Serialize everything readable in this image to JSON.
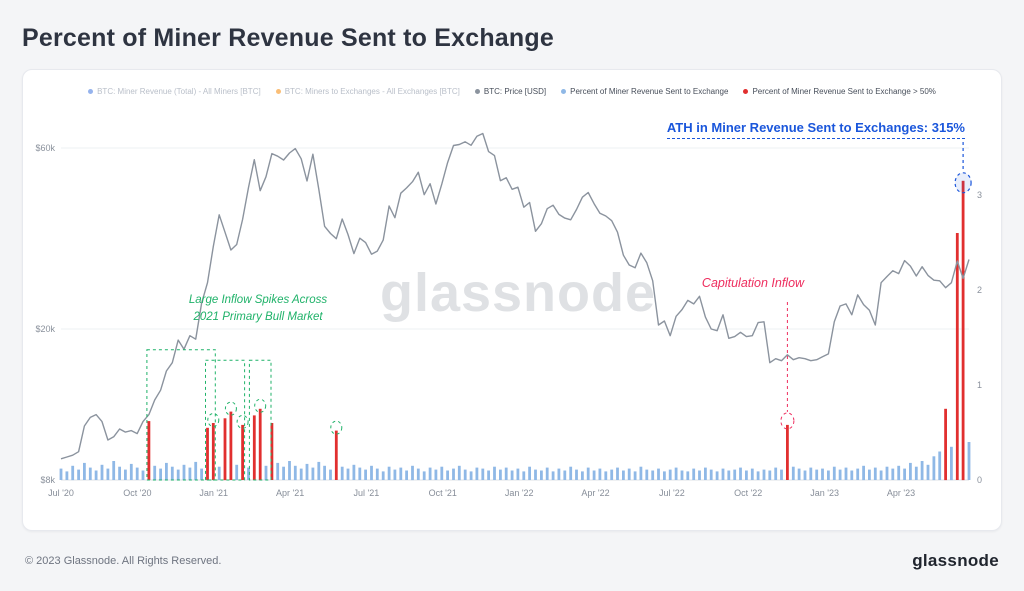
{
  "page": {
    "title": "Percent of Miner Revenue Sent to Exchange",
    "footer": {
      "copyright": "© 2023 Glassnode. All Rights Reserved.",
      "brand": "glassnode"
    }
  },
  "legend": {
    "items": [
      {
        "label": "BTC: Miner Revenue (Total) - All Miners [BTC]",
        "color": "#4f80e1",
        "active": false
      },
      {
        "label": "BTC: Miners to Exchanges - All Exchanges [BTC]",
        "color": "#f7931a",
        "active": false
      },
      {
        "label": "BTC: Price [USD]",
        "color": "#8b939e",
        "active": true
      },
      {
        "label": "Percent of Miner Revenue Sent to Exchange",
        "color": "#8fb8e6",
        "active": true
      },
      {
        "label": "Percent of Miner Revenue Sent to Exchange > 50%",
        "color": "#e12f2f",
        "active": true
      }
    ]
  },
  "chart_data": {
    "type": "line+bar",
    "watermark": "glassnode",
    "x_start": "Jul 2020",
    "x_interval": "weekly",
    "x_tick_labels": [
      "Jul '20",
      "Oct '20",
      "Jan '21",
      "Apr '21",
      "Jul '21",
      "Oct '21",
      "Jan '22",
      "Apr '22",
      "Jul '22",
      "Oct '22",
      "Jan '23",
      "Apr '23"
    ],
    "left_axis": {
      "label": "BTC: Price [USD]",
      "scale": "log",
      "unit": "kUSD",
      "min": 8,
      "max": 75,
      "ticks": [
        {
          "label": "$60k",
          "value": 60
        },
        {
          "label": "$20k",
          "value": 20
        },
        {
          "label": "$8k",
          "value": 8
        }
      ]
    },
    "right_axis": {
      "label": "Percent of Miner Revenue Sent to Exchange (1.0 = 100%)",
      "scale": "linear",
      "min": 0,
      "max": 3.3,
      "ticks": [
        0,
        1,
        2,
        3
      ]
    },
    "red_threshold": 0.5,
    "grid": "faint-horizontal",
    "legend_position": "top-center",
    "series": [
      {
        "name": "BTC: Price [USD]",
        "type": "line",
        "color": "#8b939e",
        "unit": "kUSD",
        "values": [
          9.1,
          9.2,
          9.3,
          9.5,
          11.1,
          11.7,
          11.9,
          11.4,
          10.2,
          10.4,
          10.9,
          10.7,
          10.8,
          10.6,
          11.4,
          11.9,
          13.0,
          13.8,
          15.5,
          16.3,
          18.7,
          17.7,
          19.2,
          18.8,
          23.4,
          26.5,
          33.0,
          40.0,
          36.0,
          32.3,
          33.4,
          38.9,
          47.2,
          55.9,
          46.3,
          50.4,
          58.0,
          57.1,
          55.8,
          58.2,
          59.8,
          56.2,
          49.1,
          57.8,
          46.7,
          37.3,
          35.7,
          34.6,
          39.0,
          35.5,
          31.6,
          34.7,
          33.8,
          31.5,
          32.1,
          34.3,
          42.2,
          39.3,
          45.6,
          47.1,
          48.9,
          51.8,
          45.2,
          48.3,
          42.7,
          48.2,
          54.9,
          60.9,
          61.3,
          62.3,
          61.0,
          64.4,
          65.5,
          58.7,
          57.3,
          49.2,
          50.1,
          46.7,
          47.3,
          41.9,
          43.1,
          36.2,
          37.9,
          41.5,
          42.4,
          40.1,
          39.2,
          38.8,
          41.3,
          44.5,
          45.8,
          42.8,
          40.4,
          39.7,
          38.6,
          36.0,
          31.3,
          29.5,
          29.0,
          31.7,
          29.9,
          26.8,
          20.5,
          21.0,
          19.2,
          21.6,
          22.5,
          23.8,
          23.3,
          24.4,
          21.5,
          20.0,
          19.8,
          21.8,
          18.9,
          19.1,
          19.6,
          19.1,
          19.2,
          20.8,
          20.9,
          16.3,
          16.7,
          16.5,
          17.1,
          16.6,
          16.8,
          16.7,
          16.5,
          16.6,
          16.9,
          17.2,
          20.9,
          23.0,
          23.3,
          21.8,
          24.6,
          23.2,
          22.4,
          20.5,
          26.5,
          27.5,
          28.5,
          28.0,
          30.3,
          29.3,
          27.6,
          29.2,
          27.7,
          26.9,
          26.8,
          25.7,
          26.5,
          30.2,
          27.2,
          30.5
        ]
      },
      {
        "name": "Percent of Miner Revenue Sent to Exchange",
        "type": "bar",
        "color": "#8fb8e6",
        "color_above_threshold": "#e12f2f",
        "values": [
          0.12,
          0.09,
          0.15,
          0.11,
          0.18,
          0.13,
          0.1,
          0.16,
          0.12,
          0.2,
          0.14,
          0.11,
          0.17,
          0.13,
          0.1,
          0.62,
          0.15,
          0.12,
          0.18,
          0.14,
          0.11,
          0.16,
          0.13,
          0.19,
          0.12,
          0.55,
          0.6,
          0.14,
          0.65,
          0.72,
          0.16,
          0.58,
          0.13,
          0.68,
          0.75,
          0.15,
          0.6,
          0.18,
          0.14,
          0.2,
          0.15,
          0.12,
          0.17,
          0.13,
          0.19,
          0.15,
          0.11,
          0.52,
          0.14,
          0.12,
          0.16,
          0.13,
          0.11,
          0.15,
          0.12,
          0.09,
          0.14,
          0.11,
          0.13,
          0.1,
          0.15,
          0.12,
          0.09,
          0.13,
          0.11,
          0.14,
          0.1,
          0.12,
          0.15,
          0.11,
          0.09,
          0.13,
          0.12,
          0.1,
          0.14,
          0.11,
          0.13,
          0.1,
          0.12,
          0.09,
          0.14,
          0.11,
          0.1,
          0.13,
          0.09,
          0.12,
          0.1,
          0.14,
          0.11,
          0.09,
          0.13,
          0.1,
          0.12,
          0.09,
          0.11,
          0.13,
          0.1,
          0.12,
          0.09,
          0.14,
          0.11,
          0.1,
          0.12,
          0.09,
          0.11,
          0.13,
          0.1,
          0.09,
          0.12,
          0.1,
          0.13,
          0.11,
          0.09,
          0.12,
          0.1,
          0.11,
          0.13,
          0.1,
          0.12,
          0.09,
          0.11,
          0.1,
          0.13,
          0.11,
          0.58,
          0.14,
          0.12,
          0.1,
          0.13,
          0.11,
          0.12,
          0.1,
          0.14,
          0.11,
          0.13,
          0.1,
          0.12,
          0.15,
          0.11,
          0.13,
          0.1,
          0.14,
          0.12,
          0.15,
          0.12,
          0.18,
          0.14,
          0.2,
          0.16,
          0.25,
          0.3,
          0.75,
          0.35,
          2.6,
          3.15,
          0.4
        ]
      }
    ],
    "annotations": {
      "ath": {
        "text": "ATH in Miner Revenue Sent to Exchanges: 315%",
        "color": "#1a56db",
        "target_week": 154,
        "target_value": 3.15
      },
      "capitulation": {
        "text": "Capitulation Inflow",
        "color": "#ee2d5e",
        "target_week": 124,
        "target_value": 0.58
      },
      "bull_market": {
        "text_line1": "Large Inflow Spikes Across",
        "text_line2": "2021 Primary Bull Market",
        "color": "#1fb269",
        "boxes": [
          {
            "from_week": 15,
            "to_week": 26,
            "top": 1.37
          },
          {
            "from_week": 25,
            "to_week": 31,
            "top": 1.26
          },
          {
            "from_week": 32.5,
            "to_week": 35.5,
            "top": 1.26
          }
        ],
        "circles": [
          {
            "week": 26,
            "value": 0.6
          },
          {
            "week": 29,
            "value": 0.72
          },
          {
            "week": 31,
            "value": 0.58
          },
          {
            "week": 34,
            "value": 0.75
          },
          {
            "week": 47,
            "value": 0.52
          }
        ]
      }
    }
  }
}
